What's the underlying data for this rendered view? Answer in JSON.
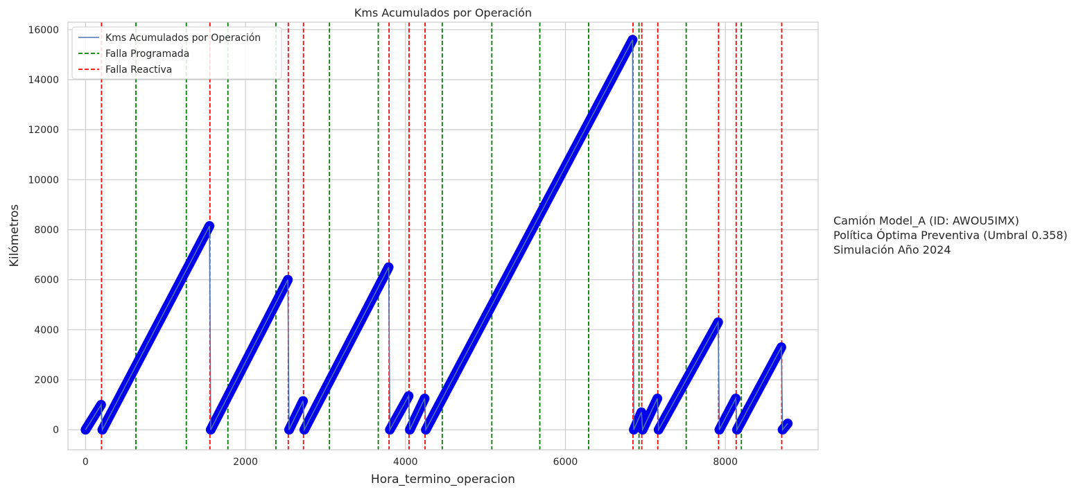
{
  "chart_data": {
    "type": "line",
    "title": "Kms Acumulados por Operación",
    "xlabel": "Hora_termino_operacion",
    "ylabel": "Kilómetros",
    "xlim": [
      -220,
      9160
    ],
    "ylim": [
      -800,
      16300
    ],
    "xticks": [
      0,
      2000,
      4000,
      6000,
      8000
    ],
    "xtick_labels": [
      "0",
      "2000",
      "4000",
      "6000",
      "8000"
    ],
    "yticks": [
      0,
      2000,
      4000,
      6000,
      8000,
      10000,
      12000,
      14000,
      16000
    ],
    "ytick_labels": [
      "0",
      "2000",
      "4000",
      "6000",
      "8000",
      "10000",
      "12000",
      "14000",
      "16000"
    ],
    "grid": true,
    "legend_position": "top-left",
    "series": [
      {
        "name": "Kms Acumulados por Operación",
        "color": "#4c72b0",
        "marker_color": "#0000ee",
        "segments": [
          {
            "x0": 0,
            "x1": 195,
            "y0": 0,
            "y1": 1000
          },
          {
            "x0": 210,
            "x1": 1550,
            "y0": 0,
            "y1": 8150
          },
          {
            "x0": 1565,
            "x1": 2530,
            "y0": 0,
            "y1": 6000
          },
          {
            "x0": 2545,
            "x1": 2720,
            "y0": 0,
            "y1": 1150
          },
          {
            "x0": 2735,
            "x1": 3790,
            "y0": 0,
            "y1": 6500
          },
          {
            "x0": 3805,
            "x1": 4040,
            "y0": 0,
            "y1": 1350
          },
          {
            "x0": 4055,
            "x1": 4240,
            "y0": 0,
            "y1": 1250
          },
          {
            "x0": 4255,
            "x1": 6840,
            "y0": 0,
            "y1": 15600
          },
          {
            "x0": 6855,
            "x1": 6950,
            "y0": 0,
            "y1": 700
          },
          {
            "x0": 6965,
            "x1": 7150,
            "y0": 0,
            "y1": 1250
          },
          {
            "x0": 7165,
            "x1": 7910,
            "y0": 0,
            "y1": 4300
          },
          {
            "x0": 7925,
            "x1": 8130,
            "y0": 0,
            "y1": 1250
          },
          {
            "x0": 8145,
            "x1": 8700,
            "y0": 0,
            "y1": 3300
          },
          {
            "x0": 8715,
            "x1": 8780,
            "y0": 0,
            "y1": 250
          }
        ]
      },
      {
        "name": "Falla Programada",
        "color": "#008000",
        "style": "dashed",
        "x": [
          630,
          1260,
          1780,
          2380,
          3050,
          3660,
          4460,
          5080,
          5680,
          6290,
          6920,
          7510,
          8200
        ]
      },
      {
        "name": "Falla Reactiva",
        "color": "#ff0000",
        "style": "dashed",
        "x": [
          200,
          1555,
          2535,
          2725,
          3795,
          4045,
          4245,
          6845,
          6955,
          7155,
          7915,
          8135,
          8705
        ]
      }
    ]
  },
  "annotation": {
    "line1": "Camión Model_A (ID: AWOU5IMX)",
    "line2": "Política Óptima Preventiva (Umbral 0.358)",
    "line3": "Simulación Año 2024"
  }
}
